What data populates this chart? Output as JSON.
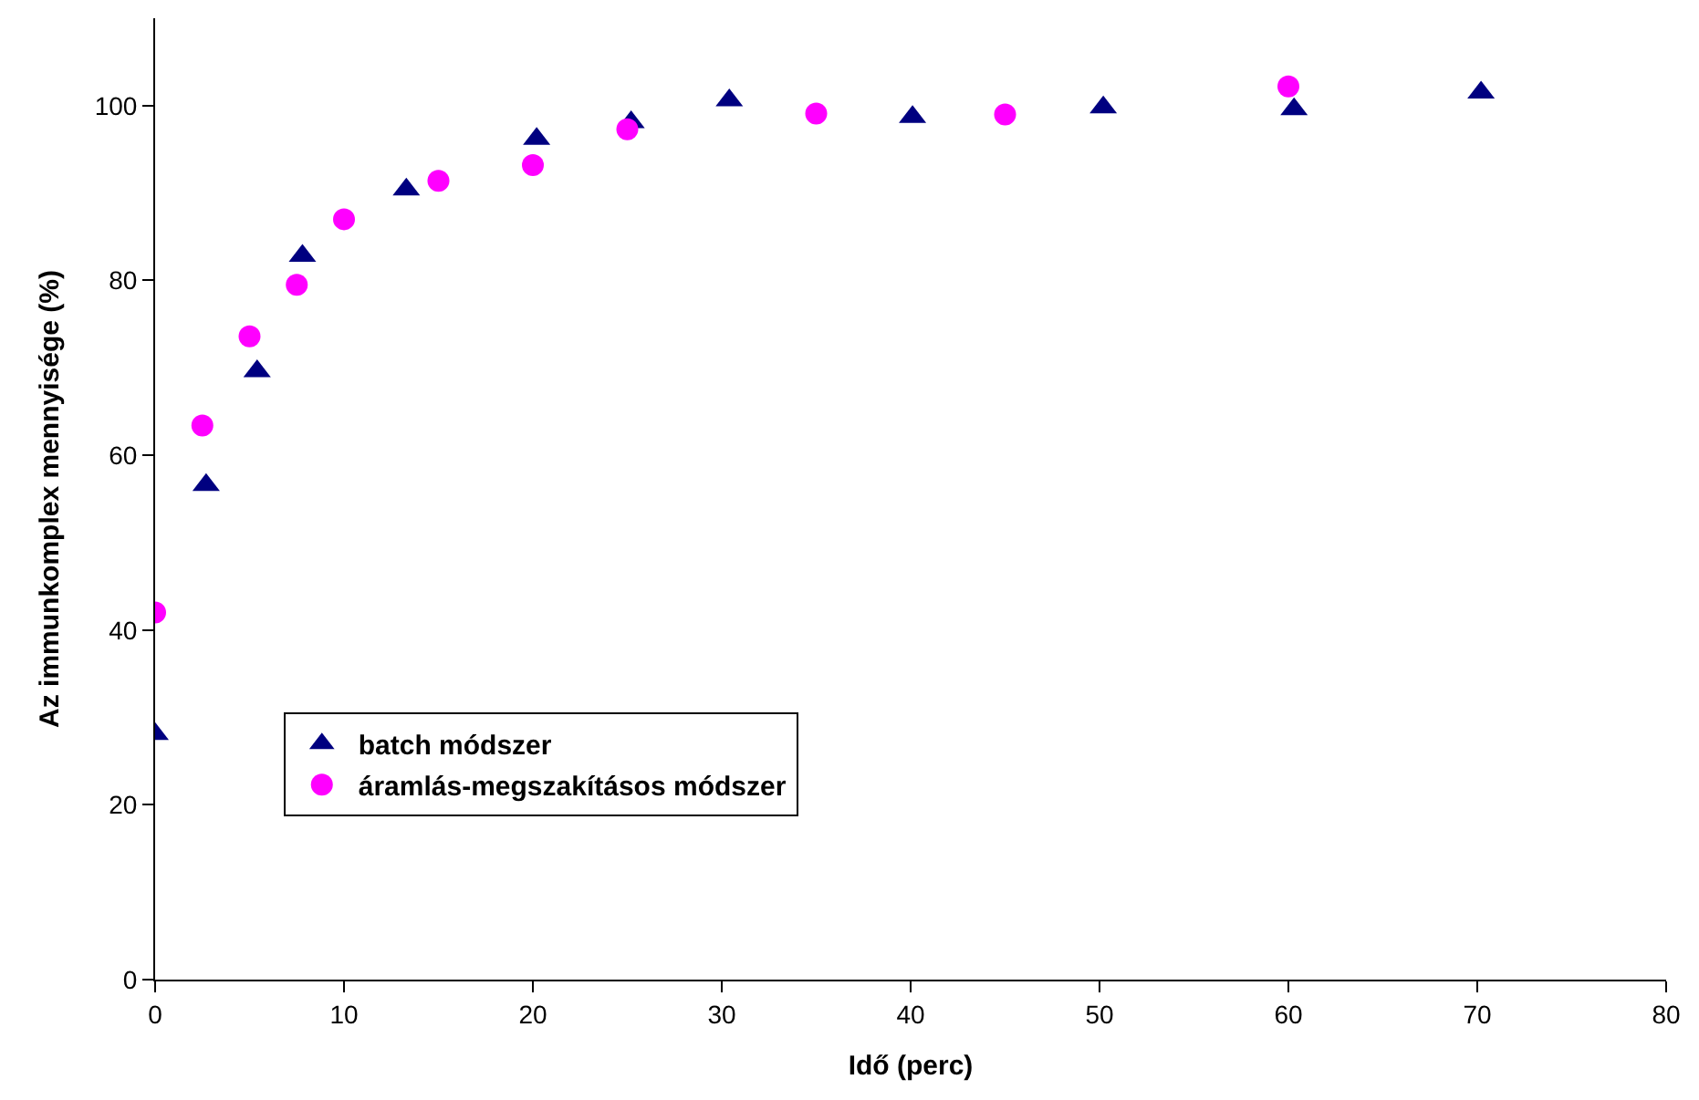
{
  "chart_data": {
    "type": "scatter",
    "xlabel": "Idő (perc)",
    "ylabel": "Az immunkomplex mennyisége (%)",
    "xlim": [
      0,
      80
    ],
    "xticks": [
      0,
      10,
      20,
      30,
      40,
      50,
      60,
      70,
      80
    ],
    "ylim": [
      0,
      110
    ],
    "yticks": [
      0,
      20,
      40,
      60,
      80,
      100
    ],
    "legend": "bottom left",
    "series": [
      {
        "name": "batch módszer",
        "color": "#000080",
        "marker": "triangle",
        "x": [
          0,
          2.7,
          5.4,
          7.8,
          13.3,
          20.2,
          25.2,
          30.4,
          40.1,
          50.2,
          60.3,
          70.2
        ],
        "values": [
          28.1,
          56.6,
          69.6,
          82.8,
          90.4,
          96.2,
          98.1,
          100.6,
          98.7,
          99.8,
          99.6,
          101.5
        ]
      },
      {
        "name": "áramlás-megszakításos módszer",
        "color": "#ff00ff",
        "marker": "circle",
        "x": [
          0,
          2.5,
          5,
          7.5,
          10,
          15,
          20,
          25,
          35,
          45,
          60
        ],
        "values": [
          42.0,
          63.4,
          73.6,
          79.5,
          87.0,
          91.4,
          93.2,
          97.3,
          99.1,
          99.0,
          102.2
        ]
      }
    ]
  }
}
